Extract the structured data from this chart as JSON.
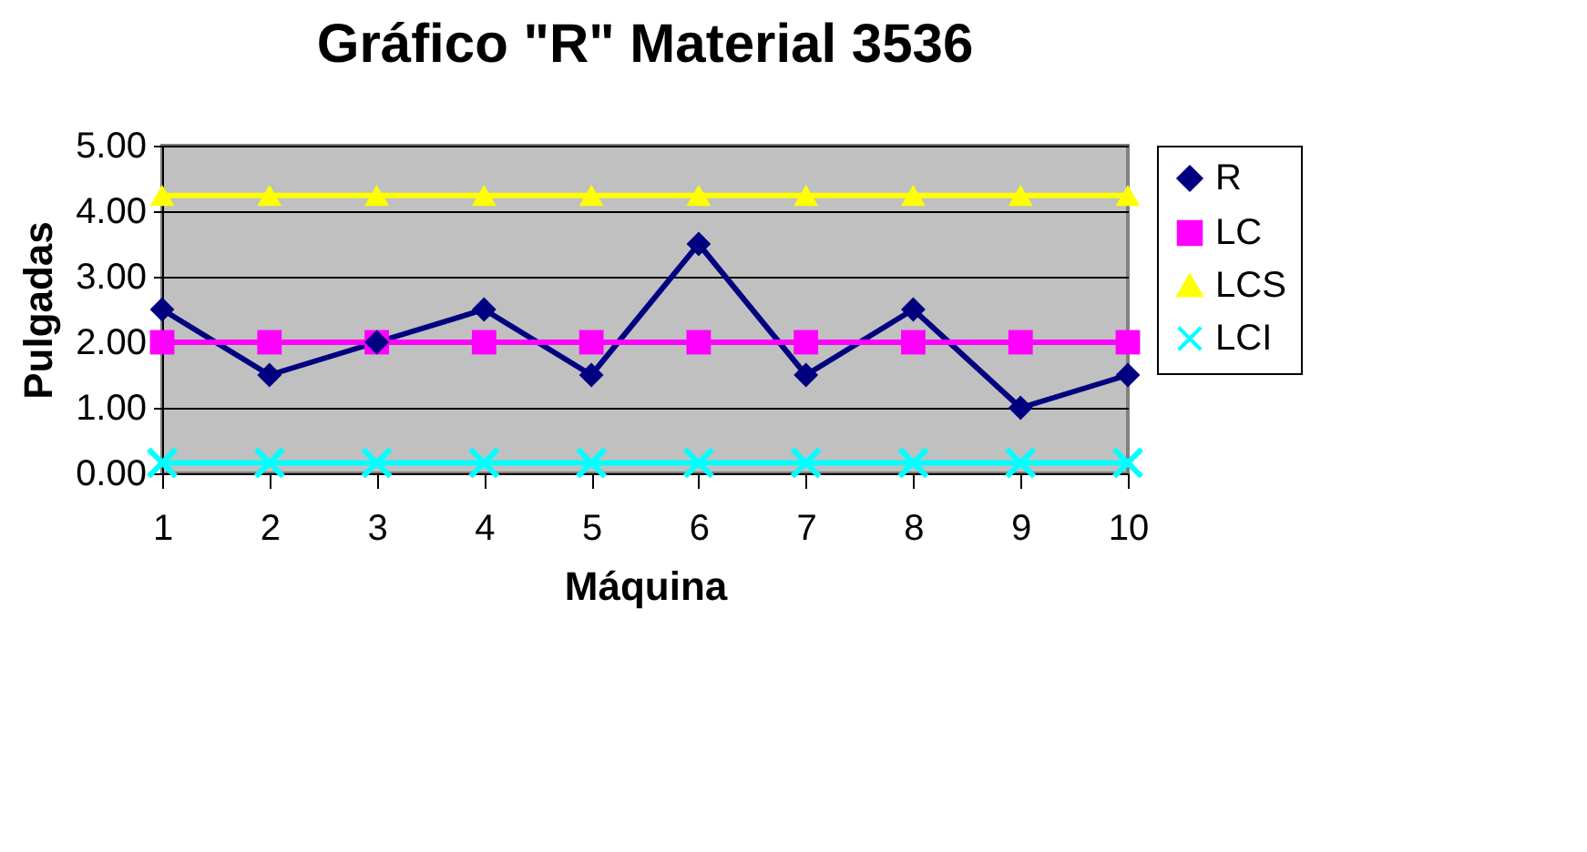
{
  "chart_data": {
    "type": "line",
    "title": "Gráfico \"R\" Material 3536",
    "xlabel": "Máquina",
    "ylabel": "Pulgadas",
    "categories": [
      "1",
      "2",
      "3",
      "4",
      "5",
      "6",
      "7",
      "8",
      "9",
      "10"
    ],
    "series": [
      {
        "name": "R",
        "color": "#000080",
        "marker": "diamond",
        "values": [
          2.5,
          1.5,
          2.0,
          2.5,
          1.5,
          3.5,
          1.5,
          2.5,
          1.0,
          1.5
        ]
      },
      {
        "name": "LC",
        "color": "#ff00ff",
        "marker": "square",
        "values": [
          2.0,
          2.0,
          2.0,
          2.0,
          2.0,
          2.0,
          2.0,
          2.0,
          2.0,
          2.0
        ]
      },
      {
        "name": "LCS",
        "color": "#ffff00",
        "marker": "triangle",
        "values": [
          4.24,
          4.24,
          4.24,
          4.24,
          4.24,
          4.24,
          4.24,
          4.24,
          4.24,
          4.24
        ]
      },
      {
        "name": "LCI",
        "color": "#00ffff",
        "marker": "cross",
        "values": [
          0.16,
          0.16,
          0.16,
          0.16,
          0.16,
          0.16,
          0.16,
          0.16,
          0.16,
          0.16
        ]
      }
    ],
    "ylim": [
      0,
      5
    ],
    "yticks": [
      {
        "value": 0,
        "label": "0.00"
      },
      {
        "value": 1,
        "label": "1.00"
      },
      {
        "value": 2,
        "label": "2.00"
      },
      {
        "value": 3,
        "label": "3.00"
      },
      {
        "value": 4,
        "label": "4.00"
      },
      {
        "value": 5,
        "label": "5.00"
      }
    ],
    "grid": "y",
    "legend": "right",
    "line_style": "solid"
  }
}
